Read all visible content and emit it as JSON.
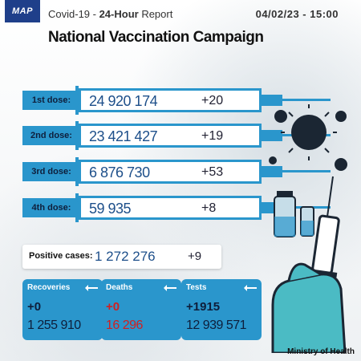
{
  "header": {
    "logo": "MAP",
    "report_prefix": "Covid-19  -  ",
    "report_bold": "24-Hour",
    "report_suffix": " Report",
    "datetime": "04/02/23 - 15:00",
    "title": "National Vaccination Campaign"
  },
  "doses": [
    {
      "label": "1st dose:",
      "total": "24 920 174",
      "delta": "+20"
    },
    {
      "label": "2nd dose:",
      "total": "23 421 427",
      "delta": "+19"
    },
    {
      "label": "3rd dose:",
      "total": "6 876 730",
      "delta": "+53"
    },
    {
      "label": "4th dose:",
      "total": "59 935",
      "delta": "+8"
    }
  ],
  "positive": {
    "label": "Positive cases:",
    "total": "1 272 276",
    "delta": "+9"
  },
  "cards": [
    {
      "label": "Recoveries",
      "delta": "+0",
      "total": "1 255 910"
    },
    {
      "label": "Deaths",
      "delta": "+0",
      "total": "16 296"
    },
    {
      "label": "Tests",
      "delta": "+1915",
      "total": "12 939 571"
    }
  ],
  "footer": {
    "ministry": "Ministry of Health"
  },
  "colors": {
    "accent": "#2a96cc",
    "navy": "#1f3f8a",
    "death_red": "#d21f1f"
  }
}
